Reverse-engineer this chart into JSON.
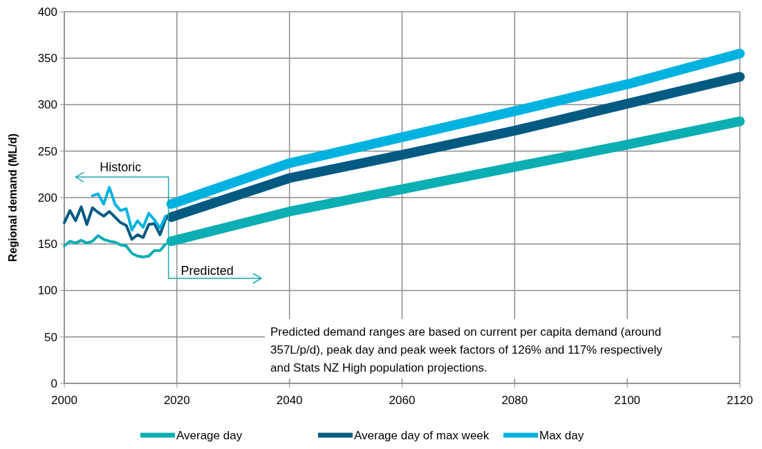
{
  "chart_data": {
    "type": "line",
    "ylabel": "Regional demand (ML/d)",
    "xlim": [
      2000,
      2120
    ],
    "xticks": [
      2000,
      2020,
      2040,
      2060,
      2080,
      2100,
      2120
    ],
    "ylim": [
      0,
      400
    ],
    "yticks": [
      0,
      50,
      100,
      150,
      200,
      250,
      300,
      350,
      400
    ],
    "grid": true,
    "legend": "bottom",
    "line_style": "solid",
    "series": [
      {
        "name": "Average day",
        "color": "#0aaeb3",
        "x": [
          2000,
          2001,
          2002,
          2003,
          2004,
          2005,
          2006,
          2007,
          2008,
          2009,
          2010,
          2011,
          2012,
          2013,
          2014,
          2015,
          2016,
          2017,
          2018
        ],
        "values": [
          148,
          153,
          151,
          154,
          151,
          153,
          159,
          155,
          153,
          152,
          149,
          148,
          140,
          137,
          136,
          137,
          143,
          143,
          150
        ]
      },
      {
        "name": "Average day of max week",
        "color": "#005a82",
        "x": [
          2000,
          2001,
          2002,
          2003,
          2004,
          2005,
          2006,
          2007,
          2008,
          2009,
          2010,
          2011,
          2012,
          2013,
          2014,
          2015,
          2016,
          2017,
          2018
        ],
        "values": [
          173,
          186,
          175,
          190,
          171,
          189,
          184,
          180,
          185,
          179,
          173,
          170,
          155,
          160,
          157,
          171,
          172,
          160,
          177
        ]
      },
      {
        "name": "Max day",
        "color": "#00b2e0",
        "x": [
          2005,
          2006,
          2007,
          2008,
          2009,
          2010,
          2011,
          2012,
          2013,
          2014,
          2015,
          2016,
          2017,
          2018
        ],
        "values": [
          202,
          204,
          193,
          211,
          193,
          186,
          188,
          165,
          175,
          168,
          183,
          176,
          167,
          180
        ]
      },
      {
        "color": "#0aaeb3",
        "x": [
          2019,
          2040,
          2060,
          2080,
          2100,
          2120
        ],
        "values": [
          153,
          185,
          209,
          233,
          257,
          282
        ]
      },
      {
        "color": "#005a82",
        "x": [
          2019,
          2040,
          2060,
          2080,
          2100,
          2120
        ],
        "values": [
          179,
          221,
          246,
          272,
          301,
          330
        ]
      },
      {
        "color": "#00b2e0",
        "x": [
          2019,
          2040,
          2060,
          2080,
          2100,
          2120
        ],
        "values": [
          193,
          237,
          265,
          293,
          322,
          355
        ]
      }
    ],
    "annotations": [
      "Historic",
      "Predicted",
      "Predicted demand ranges are based on current per capita demand (around 357L/p/d), peak day and peak week factors of 126% and 117% respectively and Stats NZ High population projections."
    ]
  }
}
